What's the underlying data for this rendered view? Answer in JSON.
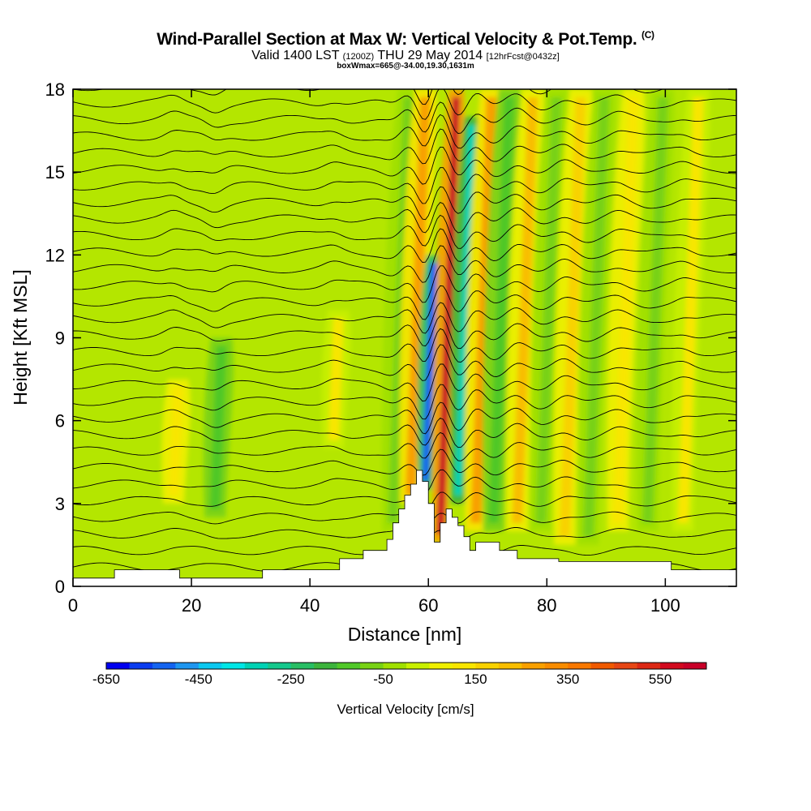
{
  "title": {
    "main": "Wind-Parallel Section at Max W: Vertical Velocity & Pot.Temp.",
    "copyright": "(C)",
    "valid_prefix": "Valid 1400 LST",
    "valid_z": "(1200Z)",
    "valid_date": "THU 29 May 2014",
    "forecast": "[12hrFcst@0432z]",
    "box_info": "boxWmax=665@-34.00,19.30,1631m"
  },
  "chart_data": {
    "type": "heatmap",
    "xlabel": "Distance [nm]",
    "ylabel": "Height [Kft MSL]",
    "xlim": [
      0,
      112
    ],
    "ylim": [
      0,
      18
    ],
    "x_ticks": [
      0,
      20,
      40,
      60,
      80,
      100
    ],
    "y_ticks": [
      0,
      3,
      6,
      9,
      12,
      15,
      18
    ],
    "colorbar": {
      "title": "Vertical Velocity [cm/s]",
      "min": -650,
      "max": 650,
      "step": 50,
      "tick_labels": [
        "-650",
        "-450",
        "-250",
        "-50",
        "150",
        "350",
        "550"
      ],
      "colors": [
        "#0000f0",
        "#0a3cf0",
        "#1464f0",
        "#1e96f0",
        "#0ac8f0",
        "#00e6e6",
        "#00d2b4",
        "#14c88c",
        "#28be64",
        "#3cb43c",
        "#50c828",
        "#78d214",
        "#a0e000",
        "#c8f000",
        "#f0f000",
        "#f8e600",
        "#f8d200",
        "#f8be00",
        "#f8a000",
        "#f88c00",
        "#f87800",
        "#f05a00",
        "#e64614",
        "#dc2814",
        "#d20a1e",
        "#c80028"
      ]
    },
    "w_plumes": [
      {
        "x": 17,
        "y_top": 7.5,
        "y_bottom": 3,
        "w_cms": 120
      },
      {
        "x": 24,
        "y_top": 9,
        "y_bottom": 2.5,
        "w_cms": -150
      },
      {
        "x": 44,
        "y_top": 10,
        "y_bottom": 5,
        "w_cms": 100
      },
      {
        "x": 54,
        "y_top": 18,
        "y_bottom": 2,
        "w_cms": -100
      },
      {
        "x": 57,
        "y_top": 18,
        "y_bottom": 3,
        "w_cms": 250
      },
      {
        "x": 59.5,
        "y_top": 12,
        "y_bottom": 3.5,
        "w_cms": -550
      },
      {
        "x": 62,
        "y_top": 18,
        "y_bottom": 1.6,
        "w_cms": 665
      },
      {
        "x": 65,
        "y_top": 17,
        "y_bottom": 3,
        "w_cms": -350
      },
      {
        "x": 68,
        "y_top": 18,
        "y_bottom": 2,
        "w_cms": 250
      },
      {
        "x": 71,
        "y_top": 18,
        "y_bottom": 2,
        "w_cms": -150
      },
      {
        "x": 75,
        "y_top": 18,
        "y_bottom": 2,
        "w_cms": 200
      },
      {
        "x": 79,
        "y_top": 18,
        "y_bottom": 2,
        "w_cms": -100
      },
      {
        "x": 83,
        "y_top": 18,
        "y_bottom": 1.5,
        "w_cms": 150
      },
      {
        "x": 87,
        "y_top": 18,
        "y_bottom": 1.5,
        "w_cms": -80
      },
      {
        "x": 92,
        "y_top": 18,
        "y_bottom": 2,
        "w_cms": 120
      },
      {
        "x": 97,
        "y_top": 18,
        "y_bottom": 2,
        "w_cms": -60
      },
      {
        "x": 103,
        "y_top": 18,
        "y_bottom": 2,
        "w_cms": 100
      }
    ],
    "terrain_x": [
      0,
      7,
      7,
      18,
      18,
      32,
      32,
      45,
      45,
      49,
      49,
      53,
      53,
      54,
      54,
      55,
      55,
      56,
      56,
      57,
      57,
      58,
      58,
      59,
      59,
      60,
      60,
      61,
      61,
      62,
      62,
      63,
      63,
      64,
      64,
      65,
      65,
      66,
      66,
      67,
      67,
      68,
      68,
      72,
      72,
      75,
      75,
      82,
      82,
      101,
      101,
      112
    ],
    "terrain_y": [
      0.3,
      0.3,
      0.6,
      0.6,
      0.3,
      0.3,
      0.6,
      0.6,
      1.0,
      1.0,
      1.3,
      1.3,
      1.7,
      1.7,
      2.3,
      2.3,
      2.8,
      2.8,
      3.3,
      3.3,
      3.7,
      3.7,
      4.2,
      4.2,
      3.8,
      3.8,
      3.0,
      3.0,
      1.6,
      1.6,
      2.3,
      2.3,
      2.8,
      2.8,
      2.5,
      2.5,
      2.2,
      2.2,
      1.8,
      1.8,
      1.3,
      1.3,
      1.6,
      1.6,
      1.3,
      1.3,
      1.0,
      1.0,
      0.9,
      0.9,
      0.6,
      0.6
    ]
  }
}
